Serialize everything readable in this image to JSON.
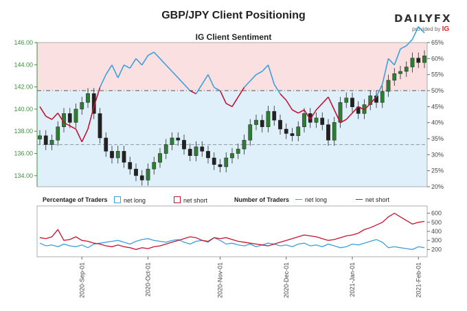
{
  "header": {
    "title": "GBP/JPY Client Positioning",
    "subtitle": "IG Client Sentiment",
    "logo_brand": "DAILYFX",
    "logo_provided": "provided by",
    "logo_ig": "IG"
  },
  "legend": {
    "pct_title": "Percentage of Traders",
    "pct_long": "net long",
    "pct_short": "net short",
    "num_title": "Number of Traders",
    "num_long": "net long",
    "num_short": "net short"
  },
  "colors": {
    "long": "#3aa0dc",
    "short": "#c8102e",
    "long_fill": "#dff0fb",
    "short_fill": "#fbe0e2",
    "axis_green": "#3a8f3a"
  },
  "chart_data": [
    {
      "type": "candlestick",
      "title": "IG Client Sentiment",
      "left_axis": {
        "ticks": [
          "134.00",
          "136.00",
          "138.00",
          "140.00",
          "142.00",
          "144.00",
          "146.00"
        ],
        "range": [
          133.0,
          146.0
        ]
      },
      "right_axis": {
        "ticks": [
          "20%",
          "25%",
          "30%",
          "35%",
          "40%",
          "45%",
          "50%",
          "55%",
          "60%",
          "65%"
        ],
        "range": [
          20,
          65
        ]
      },
      "reference_lines": [
        {
          "axis": "right",
          "value": 50
        },
        {
          "axis": "left",
          "value": 136.8
        }
      ],
      "x_ticks": [
        "2020-Sep-01",
        "2020-Oct-01",
        "2020-Nov-01",
        "2020-Dec-01",
        "2021-Jan-01",
        "2021-Feb-01"
      ],
      "price_close": [
        137.6,
        136.8,
        137.2,
        138.4,
        139.6,
        138.8,
        140.0,
        140.6,
        141.4,
        139.6,
        137.4,
        136.2,
        135.6,
        136.2,
        135.2,
        134.6,
        134.0,
        133.6,
        134.6,
        135.2,
        136.0,
        136.8,
        137.4,
        137.2,
        136.4,
        135.8,
        136.6,
        136.2,
        135.6,
        135.0,
        134.8,
        135.6,
        136.0,
        136.4,
        137.2,
        138.6,
        139.0,
        138.4,
        139.8,
        139.0,
        138.2,
        137.8,
        137.6,
        138.4,
        139.6,
        138.8,
        139.2,
        138.6,
        137.2,
        138.8,
        140.6,
        141.0,
        140.2,
        139.6,
        140.4,
        141.2,
        140.6,
        141.6,
        142.6,
        143.2,
        143.4,
        143.8,
        144.6,
        144.2,
        144.8
      ],
      "net_long_pct": [
        45,
        42,
        41,
        43,
        40,
        39,
        38,
        34,
        38,
        45,
        51,
        55,
        58,
        54,
        58,
        57,
        60,
        58,
        61,
        62,
        60,
        58,
        56,
        54,
        52,
        50,
        49,
        52,
        55,
        51,
        50,
        46,
        45,
        48,
        51,
        53,
        55,
        56,
        58,
        52,
        49,
        47,
        44,
        43,
        44,
        41,
        44,
        46,
        48,
        44,
        40,
        41,
        43,
        45,
        44,
        46,
        48,
        52,
        60,
        58,
        63,
        64,
        66,
        70,
        68
      ]
    },
    {
      "type": "line",
      "legend_title": "Number of Traders",
      "right_axis": {
        "ticks": [
          "200",
          "300",
          "400",
          "500",
          "600"
        ],
        "range": [
          150,
          650
        ]
      },
      "series": [
        {
          "name": "net long",
          "values": [
            270,
            240,
            250,
            230,
            260,
            240,
            230,
            250,
            220,
            260,
            270,
            280,
            290,
            300,
            280,
            260,
            290,
            310,
            320,
            300,
            290,
            280,
            300,
            310,
            280,
            260,
            290,
            300,
            280,
            330,
            300,
            260,
            270,
            250,
            240,
            260,
            230,
            250,
            270,
            260,
            240,
            250,
            230,
            260,
            270,
            240,
            250,
            230,
            260,
            240,
            220,
            230,
            260,
            250,
            270,
            290,
            310,
            280,
            220,
            230,
            220,
            210,
            200,
            230,
            220
          ]
        },
        {
          "name": "net short",
          "values": [
            330,
            320,
            340,
            420,
            300,
            310,
            340,
            300,
            290,
            270,
            260,
            240,
            230,
            250,
            230,
            220,
            200,
            220,
            210,
            230,
            240,
            260,
            280,
            300,
            320,
            340,
            330,
            300,
            290,
            330,
            320,
            330,
            310,
            290,
            280,
            270,
            260,
            250,
            240,
            260,
            280,
            300,
            320,
            340,
            360,
            350,
            340,
            320,
            300,
            310,
            330,
            350,
            360,
            380,
            420,
            440,
            470,
            500,
            560,
            600,
            560,
            520,
            480,
            500,
            510
          ]
        }
      ]
    }
  ]
}
